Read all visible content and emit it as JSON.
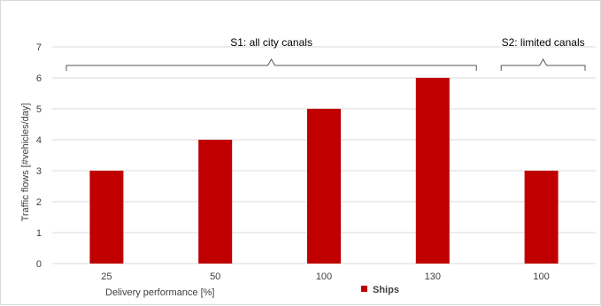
{
  "chart_data": {
    "type": "bar",
    "categories": [
      "25",
      "50",
      "100",
      "130",
      "100"
    ],
    "series": [
      {
        "name": "Ships",
        "values": [
          3,
          4,
          5,
          6,
          3
        ],
        "color": "#c00000"
      }
    ],
    "xlabel": "Delivery performance [%]",
    "ylabel": "Traffic flows [#vehicles/day]",
    "ylim": [
      0,
      7
    ],
    "yticks": [
      0,
      1,
      2,
      3,
      4,
      5,
      6,
      7
    ],
    "grid": true,
    "legend": "bottom",
    "annotations": [
      {
        "label": "S1: all city canals",
        "categories": [
          0,
          3
        ]
      },
      {
        "label": "S2: limited canals",
        "categories": [
          4,
          4
        ]
      }
    ]
  }
}
